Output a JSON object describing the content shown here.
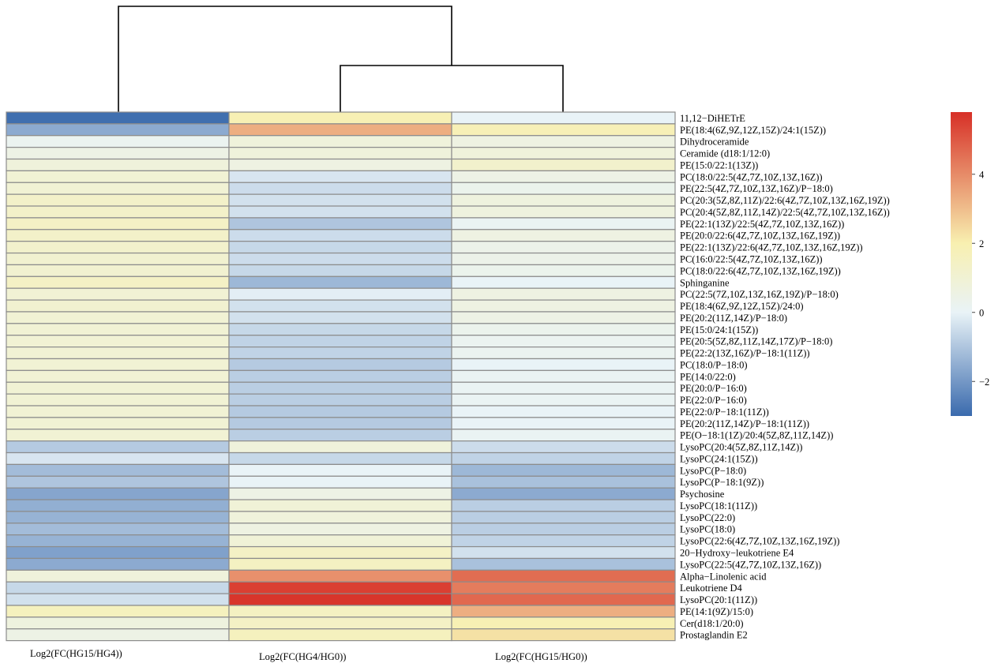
{
  "chart_data": {
    "type": "heatmap",
    "title": "",
    "columns": [
      "Log2(FC(HG15/HG4))",
      "Log2(FC(HG4/HG0))",
      "Log2(FC(HG15/HG0))"
    ],
    "rows": [
      "11,12−DiHETrE",
      "PE(18:4(6Z,9Z,12Z,15Z)/24:1(15Z))",
      "Dihydroceramide",
      "Ceramide (d18:1/12:0)",
      "PE(15:0/22:1(13Z))",
      "PC(18:0/22:5(4Z,7Z,10Z,13Z,16Z))",
      "PE(22:5(4Z,7Z,10Z,13Z,16Z)/P−18:0)",
      "PC(20:3(5Z,8Z,11Z)/22:6(4Z,7Z,10Z,13Z,16Z,19Z))",
      "PC(20:4(5Z,8Z,11Z,14Z)/22:5(4Z,7Z,10Z,13Z,16Z))",
      "PE(22:1(13Z)/22:5(4Z,7Z,10Z,13Z,16Z))",
      "PE(20:0/22:6(4Z,7Z,10Z,13Z,16Z,19Z))",
      "PE(22:1(13Z)/22:6(4Z,7Z,10Z,13Z,16Z,19Z))",
      "PC(16:0/22:5(4Z,7Z,10Z,13Z,16Z))",
      "PC(18:0/22:6(4Z,7Z,10Z,13Z,16Z,19Z))",
      "Sphinganine",
      "PC(22:5(7Z,10Z,13Z,16Z,19Z)/P−18:0)",
      "PE(18:4(6Z,9Z,12Z,15Z)/24:0)",
      "PE(20:2(11Z,14Z)/P−18:0)",
      "PE(15:0/24:1(15Z))",
      "PE(20:5(5Z,8Z,11Z,14Z,17Z)/P−18:0)",
      "PE(22:2(13Z,16Z)/P−18:1(11Z))",
      "PC(18:0/P−18:0)",
      "PE(14:0/22:0)",
      "PE(20:0/P−16:0)",
      "PE(22:0/P−16:0)",
      "PE(22:0/P−18:1(11Z))",
      "PE(20:2(11Z,14Z)/P−18:1(11Z))",
      "PE(O−18:1(1Z)/20:4(5Z,8Z,11Z,14Z))",
      "LysoPC(20:4(5Z,8Z,11Z,14Z))",
      "LysoPC(24:1(15Z))",
      "LysoPC(P−18:0)",
      "LysoPC(P−18:1(9Z))",
      "Psychosine",
      "LysoPC(18:1(11Z))",
      "LysoPC(22:0)",
      "LysoPC(18:0)",
      "LysoPC(22:6(4Z,7Z,10Z,13Z,16Z,19Z))",
      "20−Hydroxy−leukotriene E4",
      "LysoPC(22:5(4Z,7Z,10Z,13Z,16Z))",
      "Alpha−Linolenic acid",
      "Leukotriene D4",
      "LysoPC(20:1(11Z))",
      "PE(14:1(9Z)/15:0)",
      "Cer(d18:1/20:0)",
      "Prostaglandin E2"
    ],
    "values": [
      [
        -2.9,
        1.9,
        0.0
      ],
      [
        -1.6,
        3.3,
        1.8
      ],
      [
        0.2,
        0.8,
        0.6
      ],
      [
        0.5,
        0.8,
        0.8
      ],
      [
        0.8,
        0.6,
        1.2
      ],
      [
        1.0,
        -0.3,
        0.5
      ],
      [
        1.0,
        -0.5,
        0.3
      ],
      [
        1.3,
        -0.4,
        0.7
      ],
      [
        1.3,
        -0.4,
        0.7
      ],
      [
        1.4,
        -1.0,
        0.1
      ],
      [
        1.3,
        -0.5,
        0.6
      ],
      [
        1.2,
        -0.6,
        0.4
      ],
      [
        1.1,
        -0.5,
        0.4
      ],
      [
        1.1,
        -0.6,
        0.3
      ],
      [
        1.4,
        -1.3,
        0.0
      ],
      [
        1.0,
        -0.1,
        0.6
      ],
      [
        1.1,
        -0.4,
        0.6
      ],
      [
        1.0,
        -0.4,
        0.5
      ],
      [
        1.0,
        -0.6,
        0.3
      ],
      [
        1.0,
        -0.7,
        0.2
      ],
      [
        1.0,
        -0.7,
        0.2
      ],
      [
        1.0,
        -0.9,
        0.0
      ],
      [
        1.0,
        -0.8,
        0.1
      ],
      [
        1.0,
        -0.8,
        0.1
      ],
      [
        1.0,
        -0.8,
        0.1
      ],
      [
        1.0,
        -0.9,
        0.0
      ],
      [
        1.0,
        -0.9,
        0.0
      ],
      [
        1.0,
        -0.8,
        0.1
      ],
      [
        -0.9,
        0.8,
        -0.5
      ],
      [
        -0.3,
        -0.6,
        -0.7
      ],
      [
        -1.2,
        0.0,
        -1.3
      ],
      [
        -1.0,
        0.0,
        -1.1
      ],
      [
        -1.7,
        0.5,
        -1.6
      ],
      [
        -1.5,
        0.9,
        -0.8
      ],
      [
        -1.4,
        0.8,
        -0.8
      ],
      [
        -1.2,
        0.6,
        -0.8
      ],
      [
        -1.4,
        0.9,
        -0.7
      ],
      [
        -1.8,
        1.4,
        -0.4
      ],
      [
        -1.6,
        1.5,
        -1.1
      ],
      [
        0.8,
        3.9,
        4.6
      ],
      [
        -0.6,
        5.5,
        4.3
      ],
      [
        -0.4,
        5.7,
        4.7
      ],
      [
        1.6,
        1.5,
        3.3
      ],
      [
        0.7,
        1.4,
        1.9
      ],
      [
        0.5,
        1.6,
        2.3
      ]
    ],
    "colorbar": {
      "ticks": [
        -2,
        0,
        2,
        4
      ],
      "range": [
        -3,
        5.8
      ],
      "colors": [
        "#3a6aad",
        "#e9f3f7",
        "#f8f0b0",
        "#d73027"
      ]
    },
    "dendrogram": "columns: (Log2(FC(HG15/HG4)), (Log2(FC(HG4/HG0)), Log2(FC(HG15/HG0))))",
    "grid": true,
    "legend": "right"
  }
}
